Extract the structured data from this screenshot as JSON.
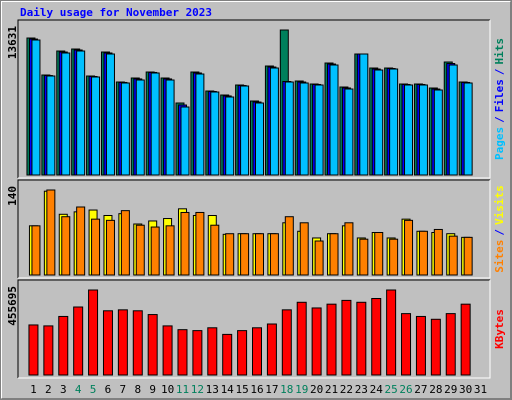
{
  "chart_data": [
    {
      "type": "bar",
      "title": "Daily usage for November 2023",
      "ylim": [
        0,
        13631
      ],
      "yticks": [
        13631
      ],
      "legend_separator": "/",
      "series": [
        {
          "name": "Hits",
          "color": "#00805c",
          "values": [
            12878,
            9400,
            11656,
            11844,
            9306,
            11562,
            8742,
            9118,
            9682,
            9118,
            6768,
            9682,
            7896,
            7520,
            8460,
            6956,
            10246,
            13631,
            8836,
            8554,
            10528,
            8272,
            11374,
            10058,
            10058,
            8554,
            8554,
            8178,
            10622,
            8742,
            null
          ]
        },
        {
          "name": "Files",
          "color": "#0000ff",
          "values": [
            12780,
            9350,
            11560,
            11750,
            9260,
            11470,
            8700,
            9030,
            9640,
            9030,
            6580,
            9590,
            7850,
            7430,
            8410,
            6860,
            10150,
            8790,
            8740,
            8510,
            10430,
            8180,
            11374,
            9960,
            10010,
            8510,
            8510,
            8080,
            10480,
            8700,
            null
          ]
        },
        {
          "name": "Pages",
          "color": "#00c0ff",
          "values": [
            12690,
            9306,
            11468,
            11656,
            9212,
            11374,
            8648,
            8930,
            9588,
            8930,
            6392,
            9494,
            7802,
            7332,
            8366,
            6768,
            10058,
            8742,
            8648,
            8460,
            10340,
            8084,
            11374,
            9870,
            9964,
            8460,
            8460,
            7990,
            10340,
            8648,
            null
          ]
        }
      ]
    },
    {
      "type": "bar",
      "ylim": [
        0,
        140
      ],
      "yticks": [
        140
      ],
      "legend_separator": "/",
      "series": [
        {
          "name": "Visits",
          "color": "#ffff00",
          "values": [
            81,
            138,
            100,
            104,
            107,
            98,
            101,
            84,
            89,
            93,
            109,
            98,
            98,
            67,
            68,
            68,
            68,
            86,
            72,
            61,
            68,
            81,
            61,
            70,
            61,
            92,
            72,
            70,
            68,
            62,
            null
          ]
        },
        {
          "name": "Sites",
          "color": "#ff8000",
          "values": [
            81,
            140,
            96,
            112,
            92,
            90,
            106,
            82,
            79,
            81,
            103,
            103,
            82,
            68,
            68,
            68,
            68,
            96,
            86,
            56,
            68,
            86,
            59,
            70,
            59,
            90,
            72,
            75,
            64,
            62,
            null
          ]
        }
      ]
    },
    {
      "type": "bar",
      "ylim": [
        0,
        455695
      ],
      "yticks": [
        455695
      ],
      "categories": [
        "1",
        "2",
        "3",
        "4",
        "5",
        "6",
        "7",
        "8",
        "9",
        "10",
        "11",
        "12",
        "13",
        "14",
        "15",
        "16",
        "17",
        "18",
        "19",
        "20",
        "21",
        "22",
        "23",
        "24",
        "25",
        "26",
        "27",
        "28",
        "29",
        "30",
        "31"
      ],
      "category_colors": [
        "#000000",
        "#000000",
        "#000000",
        "#00805c",
        "#00805c",
        "#000000",
        "#000000",
        "#000000",
        "#000000",
        "#000000",
        "#00805c",
        "#00805c",
        "#000000",
        "#000000",
        "#000000",
        "#000000",
        "#000000",
        "#00805c",
        "#00805c",
        "#000000",
        "#000000",
        "#000000",
        "#000000",
        "#000000",
        "#00805c",
        "#00805c",
        "#000000",
        "#000000",
        "#000000",
        "#000000",
        "#000000"
      ],
      "series": [
        {
          "name": "KBytes",
          "color": "#ff0000",
          "values": [
            268339,
            263276,
            313906,
            364536,
            455695,
            344284,
            349347,
            344284,
            324032,
            263276,
            243024,
            237961,
            253150,
            217709,
            237961,
            253150,
            273402,
            349347,
            389851,
            359473,
            379725,
            399977,
            389851,
            410103,
            455695,
            329095,
            313906,
            298717,
            329095,
            379725,
            null
          ]
        }
      ]
    }
  ]
}
